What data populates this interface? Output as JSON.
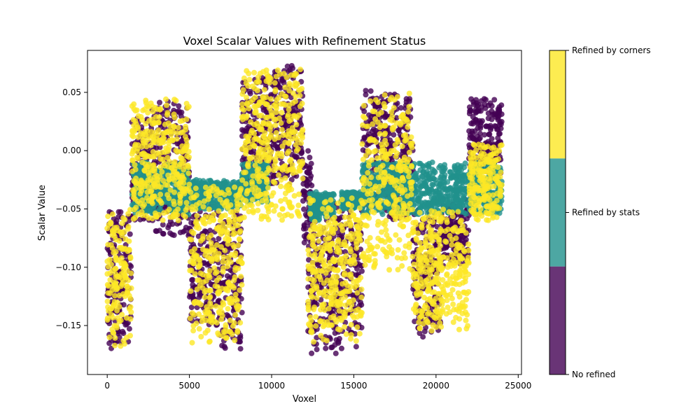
{
  "chart_data": {
    "type": "scatter",
    "title": "Voxel Scalar Values with Refinement Status",
    "xlabel": "Voxel",
    "ylabel": "Scalar Value",
    "xlim": [
      -1200,
      25200
    ],
    "ylim": [
      -0.192,
      0.086
    ],
    "xticks": [
      0,
      5000,
      10000,
      15000,
      20000,
      25000
    ],
    "xtick_labels": [
      "0",
      "5000",
      "10000",
      "15000",
      "20000",
      "25000"
    ],
    "yticks": [
      -0.15,
      -0.1,
      -0.05,
      0.0,
      0.05
    ],
    "ytick_labels": [
      "−0.15",
      "−0.10",
      "−0.05",
      "0.00",
      "0.05"
    ],
    "grid": false,
    "colorbar": {
      "labels": [
        "No refined",
        "Refined by stats",
        "Refined by corners"
      ],
      "colors": [
        "#440154",
        "#21918c",
        "#fde725"
      ]
    },
    "series": [
      {
        "name": "No refined",
        "color": "#440154",
        "blocks": [
          {
            "x_start": 0,
            "x_end": 1500,
            "y_min": -0.17,
            "y_max": -0.05
          },
          {
            "x_start": 1500,
            "x_end": 2600,
            "y_min": -0.06,
            "y_max": 0.028
          },
          {
            "x_start": 2600,
            "x_end": 3200,
            "y_min": -0.07,
            "y_max": 0.045
          },
          {
            "x_start": 3200,
            "x_end": 5000,
            "y_min": -0.075,
            "y_max": 0.045
          },
          {
            "x_start": 5000,
            "x_end": 6800,
            "y_min": -0.15,
            "y_max": -0.045
          },
          {
            "x_start": 6800,
            "x_end": 8200,
            "y_min": -0.17,
            "y_max": -0.05
          },
          {
            "x_start": 8200,
            "x_end": 10000,
            "y_min": -0.03,
            "y_max": 0.065
          },
          {
            "x_start": 10000,
            "x_end": 11900,
            "y_min": -0.03,
            "y_max": 0.073
          },
          {
            "x_start": 11900,
            "x_end": 12500,
            "y_min": -0.08,
            "y_max": 0.0
          },
          {
            "x_start": 12200,
            "x_end": 14000,
            "y_min": -0.18,
            "y_max": -0.04
          },
          {
            "x_start": 14000,
            "x_end": 15500,
            "y_min": -0.17,
            "y_max": -0.04
          },
          {
            "x_start": 15500,
            "x_end": 16800,
            "y_min": -0.05,
            "y_max": 0.052
          },
          {
            "x_start": 16800,
            "x_end": 18600,
            "y_min": -0.06,
            "y_max": 0.05
          },
          {
            "x_start": 18600,
            "x_end": 20300,
            "y_min": -0.16,
            "y_max": -0.05
          },
          {
            "x_start": 20300,
            "x_end": 22000,
            "y_min": -0.1,
            "y_max": -0.04
          },
          {
            "x_start": 22000,
            "x_end": 24000,
            "y_min": -0.02,
            "y_max": 0.045
          }
        ]
      },
      {
        "name": "Refined by stats",
        "color": "#21918c",
        "blocks": [
          {
            "x_start": 1500,
            "x_end": 5000,
            "y_min": -0.055,
            "y_max": -0.01
          },
          {
            "x_start": 5000,
            "x_end": 8200,
            "y_min": -0.05,
            "y_max": -0.025
          },
          {
            "x_start": 8200,
            "x_end": 9800,
            "y_min": -0.045,
            "y_max": -0.01
          },
          {
            "x_start": 12300,
            "x_end": 13800,
            "y_min": -0.06,
            "y_max": -0.035
          },
          {
            "x_start": 14200,
            "x_end": 15500,
            "y_min": -0.05,
            "y_max": -0.035
          },
          {
            "x_start": 15500,
            "x_end": 24000,
            "y_min": -0.055,
            "y_max": -0.01
          }
        ]
      },
      {
        "name": "Refined by corners",
        "color": "#fde725",
        "blocks": [
          {
            "x_start": 0,
            "x_end": 1500,
            "y_min": -0.168,
            "y_max": -0.05
          },
          {
            "x_start": 1500,
            "x_end": 5000,
            "y_min": -0.06,
            "y_max": 0.045
          },
          {
            "x_start": 5000,
            "x_end": 8200,
            "y_min": -0.165,
            "y_max": -0.025
          },
          {
            "x_start": 8200,
            "x_end": 11900,
            "y_min": -0.06,
            "y_max": 0.07
          },
          {
            "x_start": 12200,
            "x_end": 15500,
            "y_min": -0.165,
            "y_max": -0.04
          },
          {
            "x_start": 15500,
            "x_end": 18600,
            "y_min": -0.105,
            "y_max": 0.052
          },
          {
            "x_start": 18600,
            "x_end": 22000,
            "y_min": -0.155,
            "y_max": -0.05
          },
          {
            "x_start": 22000,
            "x_end": 24000,
            "y_min": -0.06,
            "y_max": 0.008
          }
        ]
      }
    ]
  }
}
